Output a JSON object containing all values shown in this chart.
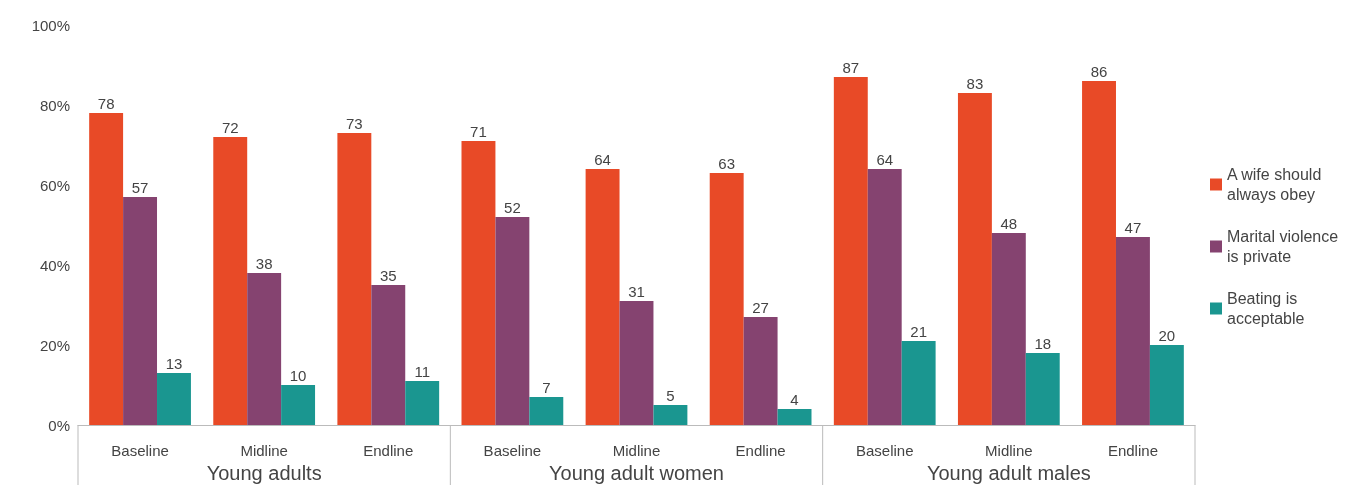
{
  "chart_data": {
    "type": "bar",
    "categories": [
      "Baseline",
      "Midline",
      "Endline",
      "Baseline",
      "Midline",
      "Endline",
      "Baseline",
      "Midline",
      "Endline"
    ],
    "series": [
      {
        "name": "A wife should always obey",
        "color": "#e84a27",
        "values": [
          78,
          72,
          73,
          71,
          64,
          63,
          87,
          83,
          86
        ]
      },
      {
        "name": "Marital violence is private",
        "color": "#854370",
        "values": [
          57,
          38,
          35,
          52,
          31,
          27,
          64,
          48,
          47
        ]
      },
      {
        "name": "Beating is acceptable",
        "color": "#1a9690",
        "values": [
          13,
          10,
          11,
          7,
          5,
          4,
          21,
          18,
          20
        ]
      }
    ],
    "annotations": [
      "Young adults",
      "Young adult women",
      "Young adult males"
    ],
    "ylim": [
      0,
      100
    ],
    "yticks": [
      {
        "value": 0,
        "label": "0%"
      },
      {
        "value": 20,
        "label": "20%"
      },
      {
        "value": 40,
        "label": "40%"
      },
      {
        "value": 60,
        "label": "60%"
      },
      {
        "value": 80,
        "label": "80%"
      },
      {
        "value": 100,
        "label": "100%"
      }
    ],
    "grid": false,
    "legend": "right",
    "data_labels": true
  }
}
